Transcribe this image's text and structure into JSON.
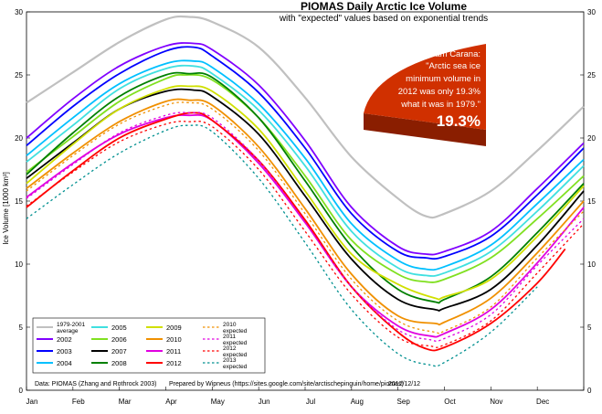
{
  "chart_data": {
    "type": "line",
    "title": "PIOMAS Daily Arctic Ice Volume",
    "subtitle": "with \"expected\" values based on exponential trends",
    "ylabel": "Ice Volume [1000 km³]",
    "xlabel": "",
    "ylim": [
      0,
      30
    ],
    "yticks": [
      0,
      5,
      10,
      15,
      20,
      25,
      30
    ],
    "grid": false,
    "months": [
      "Jan",
      "Feb",
      "Mar",
      "Apr",
      "May",
      "Jun",
      "Jul",
      "Aug",
      "Sep",
      "Oct",
      "Nov",
      "Dec"
    ],
    "x_unit": "month (0 = Jan 1, 12 = Dec 31)",
    "series": [
      {
        "name": "1979-2001 average",
        "color": "#c0c0c0",
        "dash": false,
        "x": [
          0,
          1,
          2,
          3,
          3.5,
          4,
          5,
          6,
          7,
          8,
          8.6,
          9,
          10,
          11,
          12
        ],
        "y": [
          22.8,
          25.2,
          27.6,
          29.4,
          29.6,
          29.2,
          27.2,
          23.2,
          18.5,
          15.2,
          13.8,
          14.0,
          15.8,
          19.0,
          22.5
        ]
      },
      {
        "name": "2002",
        "color": "#8000ff",
        "dash": false,
        "x": [
          0,
          1,
          2,
          3,
          3.6,
          4,
          5,
          6,
          7,
          8,
          8.6,
          9,
          10,
          11,
          12
        ],
        "y": [
          20.0,
          23.1,
          25.7,
          27.3,
          27.5,
          27.0,
          24.2,
          19.8,
          14.5,
          11.4,
          10.8,
          11.0,
          12.6,
          16.0,
          19.6
        ]
      },
      {
        "name": "2003",
        "color": "#0000ff",
        "dash": false,
        "x": [
          0,
          1,
          2,
          3,
          3.6,
          4,
          5,
          6,
          7,
          8,
          8.6,
          9,
          10,
          11,
          12
        ],
        "y": [
          19.4,
          22.5,
          25.1,
          26.9,
          27.2,
          26.5,
          23.6,
          19.2,
          14.0,
          11.0,
          10.5,
          10.6,
          12.2,
          15.5,
          19.2
        ]
      },
      {
        "name": "2004",
        "color": "#00c0ff",
        "dash": false,
        "x": [
          0,
          1,
          2,
          3,
          3.6,
          4,
          5,
          6,
          7,
          8,
          8.6,
          9,
          10,
          11,
          12
        ],
        "y": [
          18.6,
          21.6,
          24.3,
          25.9,
          26.1,
          25.6,
          22.7,
          18.4,
          13.2,
          10.3,
          9.6,
          9.8,
          11.5,
          14.8,
          18.3
        ]
      },
      {
        "name": "2005",
        "color": "#40e0e0",
        "dash": false,
        "x": [
          0,
          1,
          2,
          3,
          3.6,
          4,
          5,
          6,
          7,
          8,
          8.6,
          9,
          10,
          11,
          12
        ],
        "y": [
          18.1,
          21.0,
          23.9,
          25.5,
          25.7,
          25.1,
          22.2,
          17.8,
          12.6,
          9.7,
          9.1,
          9.3,
          11.0,
          14.2,
          17.8
        ]
      },
      {
        "name": "2006",
        "color": "#80e020",
        "dash": false,
        "x": [
          0,
          1,
          2,
          3,
          3.4,
          4,
          5,
          6,
          7,
          8,
          8.6,
          9,
          10,
          11,
          12
        ],
        "y": [
          17.3,
          20.1,
          22.9,
          24.7,
          25.0,
          24.6,
          21.6,
          17.0,
          11.9,
          9.2,
          8.6,
          8.8,
          10.5,
          13.6,
          17.0
        ]
      },
      {
        "name": "2007",
        "color": "#000000",
        "dash": false,
        "x": [
          0,
          1,
          2,
          3,
          3.6,
          4,
          5,
          6,
          7,
          8,
          8.8,
          9,
          10,
          11,
          12
        ],
        "y": [
          16.8,
          19.6,
          22.3,
          23.7,
          23.8,
          23.3,
          20.3,
          15.4,
          10.4,
          7.2,
          6.4,
          6.5,
          8.0,
          11.5,
          15.8
        ]
      },
      {
        "name": "2008",
        "color": "#008000",
        "dash": false,
        "x": [
          0,
          1,
          2,
          3,
          3.5,
          4,
          5,
          6,
          7,
          8,
          8.8,
          9,
          10,
          11,
          12
        ],
        "y": [
          17.1,
          20.4,
          23.3,
          25.0,
          25.1,
          24.8,
          21.6,
          16.6,
          11.4,
          8.0,
          7.0,
          7.2,
          9.0,
          12.5,
          16.4
        ]
      },
      {
        "name": "2009",
        "color": "#d0e000",
        "dash": false,
        "x": [
          0,
          1,
          2,
          3,
          3.5,
          4,
          5,
          6,
          7,
          8,
          8.8,
          9,
          10,
          11,
          12
        ],
        "y": [
          16.4,
          19.5,
          22.3,
          23.9,
          24.1,
          23.7,
          20.7,
          15.8,
          10.8,
          8.4,
          7.3,
          7.4,
          8.8,
          12.2,
          16.2
        ]
      },
      {
        "name": "2010",
        "color": "#f09000",
        "dash": false,
        "x": [
          0,
          1,
          2,
          3,
          3.5,
          4,
          5,
          6,
          7,
          8,
          8.8,
          9,
          10,
          11,
          12
        ],
        "y": [
          16.0,
          18.8,
          21.3,
          22.9,
          23.0,
          22.6,
          19.3,
          14.4,
          9.2,
          5.9,
          5.3,
          5.4,
          7.3,
          10.9,
          15.0
        ]
      },
      {
        "name": "2011",
        "color": "#e000e0",
        "dash": false,
        "x": [
          0,
          1,
          2,
          3,
          3.5,
          4,
          5,
          6,
          7,
          8,
          8.7,
          9,
          10,
          11,
          12
        ],
        "y": [
          15.3,
          18.0,
          20.3,
          21.6,
          21.8,
          21.4,
          18.0,
          13.3,
          8.2,
          5.1,
          4.3,
          4.5,
          6.4,
          10.1,
          14.5
        ]
      },
      {
        "name": "2012",
        "color": "#ff0000",
        "dash": false,
        "x": [
          0,
          1,
          2,
          3,
          3.6,
          4,
          5,
          6,
          7,
          8,
          8.6,
          9,
          10,
          11,
          11.6
        ],
        "y": [
          14.5,
          17.4,
          20.0,
          21.5,
          22.0,
          21.4,
          18.2,
          13.5,
          8.2,
          4.6,
          3.3,
          3.4,
          5.3,
          8.5,
          11.2
        ]
      },
      {
        "name": "2010 expected",
        "color": "#f09000",
        "dash": true,
        "x": [
          0,
          1,
          2,
          3,
          3.5,
          4,
          5,
          6,
          7,
          8,
          8.8,
          9,
          10,
          11,
          12
        ],
        "y": [
          15.8,
          18.6,
          21.1,
          22.6,
          22.8,
          22.3,
          19.0,
          14.0,
          8.8,
          5.5,
          4.6,
          4.7,
          6.6,
          10.5,
          14.2
        ]
      },
      {
        "name": "2011 expected",
        "color": "#e000e0",
        "dash": true,
        "x": [
          0,
          1,
          2,
          3,
          3.5,
          4,
          5,
          6,
          7,
          8,
          8.7,
          9,
          10,
          11,
          12
        ],
        "y": [
          15.2,
          17.9,
          20.4,
          21.8,
          22.0,
          21.6,
          18.2,
          13.3,
          8.2,
          4.8,
          4.0,
          4.1,
          6.0,
          9.9,
          13.6
        ]
      },
      {
        "name": "2012 expected",
        "color": "#ff0000",
        "dash": true,
        "x": [
          0,
          1,
          2,
          3,
          3.5,
          4,
          5,
          6,
          7,
          8,
          8.7,
          9,
          10,
          11,
          12
        ],
        "y": [
          14.6,
          17.3,
          19.7,
          21.1,
          21.3,
          20.9,
          17.5,
          12.6,
          7.6,
          4.2,
          3.5,
          3.6,
          5.5,
          9.3,
          13.2
        ]
      },
      {
        "name": "2013 expected",
        "color": "#009090",
        "dash": true,
        "x": [
          0,
          1,
          2,
          3,
          3.5,
          4,
          5,
          6,
          7,
          8,
          8.7,
          9,
          10,
          11
        ],
        "y": [
          13.6,
          16.3,
          18.8,
          20.6,
          21.0,
          20.5,
          16.8,
          11.7,
          6.4,
          2.9,
          2.0,
          2.2,
          4.6,
          8.2
        ]
      }
    ],
    "legend": {
      "placement": "bottom-left",
      "columns": [
        [
          {
            "label": "1979-2001",
            "label2": "average",
            "color": "#c0c0c0",
            "dash": false
          },
          {
            "label": "2002",
            "color": "#8000ff",
            "dash": false
          },
          {
            "label": "2003",
            "color": "#0000ff",
            "dash": false
          },
          {
            "label": "2004",
            "color": "#00c0ff",
            "dash": false
          }
        ],
        [
          {
            "label": "2005",
            "color": "#40e0e0",
            "dash": false
          },
          {
            "label": "2006",
            "color": "#80e020",
            "dash": false
          },
          {
            "label": "2007",
            "color": "#000000",
            "dash": false
          },
          {
            "label": "2008",
            "color": "#008000",
            "dash": false
          }
        ],
        [
          {
            "label": "2009",
            "color": "#d0e000",
            "dash": false
          },
          {
            "label": "2010",
            "color": "#f09000",
            "dash": false
          },
          {
            "label": "2011",
            "color": "#e000e0",
            "dash": false
          },
          {
            "label": "2012",
            "color": "#ff0000",
            "dash": false
          }
        ],
        [
          {
            "label": "2010",
            "label2": "expected",
            "color": "#f09000",
            "dash": true
          },
          {
            "label": "2011",
            "label2": "expected",
            "color": "#e000e0",
            "dash": true
          },
          {
            "label": "2012",
            "label2": "expected",
            "color": "#ff0000",
            "dash": true
          },
          {
            "label": "2013",
            "label2": "expected",
            "color": "#009090",
            "dash": true
          }
        ]
      ]
    },
    "source": "Data: PIOMAS (Zhang and Rothrock 2003)",
    "credit": "Prepared by Wipneus (https://sites.google.com/site/arctischepinguin/home/piomas)",
    "date": "2012/12/12",
    "callout": {
      "line1": "Sam Carana:",
      "line2": "\"Arctic sea ice",
      "line3": "minimum volume in",
      "line4": "2012 was only 19.3%",
      "line5": "what it was in 1979.\"",
      "big": "19.3%",
      "color": "#d03000"
    }
  }
}
